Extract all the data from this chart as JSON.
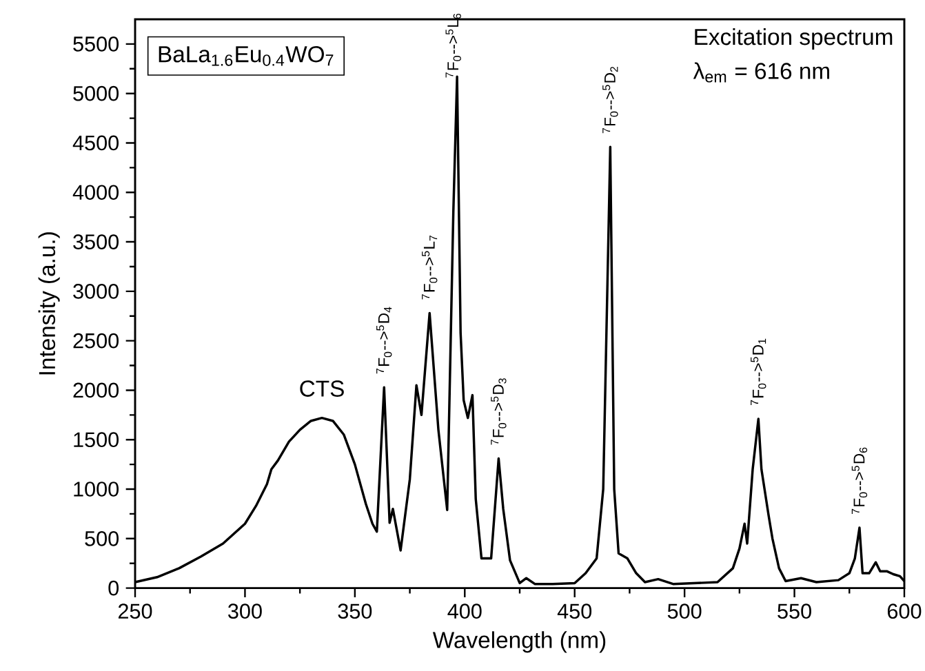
{
  "chart_data": {
    "type": "line",
    "xlabel": "Wavelength (nm)",
    "ylabel": "Intensity (a.u.)",
    "xlim": [
      250,
      600
    ],
    "ylim": [
      0,
      5750
    ],
    "xticks": [
      250,
      300,
      350,
      400,
      450,
      500,
      550,
      600
    ],
    "yticks": [
      0,
      500,
      1000,
      1500,
      2000,
      2500,
      3000,
      3500,
      4000,
      4500,
      5000,
      5500
    ],
    "color": "#000000",
    "x": [
      250,
      260,
      270,
      280,
      290,
      300,
      305,
      310,
      312,
      315,
      320,
      325,
      330,
      335,
      340,
      345,
      350,
      355,
      358,
      360,
      363.3,
      365.8,
      367.3,
      370.8,
      375,
      378,
      380.3,
      384,
      388,
      392,
      394.8,
      396.5,
      398.1,
      399.5,
      401.4,
      403.5,
      405,
      407.6,
      412,
      415.4,
      417.5,
      420.6,
      425,
      428,
      432,
      440,
      450,
      455,
      460,
      463,
      466.2,
      468,
      470,
      474,
      478,
      482,
      488,
      495,
      505,
      515,
      522,
      525,
      527.3,
      528.5,
      531,
      533.6,
      535,
      538.2,
      540,
      543,
      546,
      553,
      560,
      570,
      575,
      577.5,
      579.6,
      581,
      584,
      587,
      589,
      592,
      595,
      598,
      600
    ],
    "values": [
      60,
      110,
      200,
      320,
      450,
      650,
      830,
      1050,
      1200,
      1290,
      1480,
      1600,
      1690,
      1720,
      1690,
      1550,
      1250,
      850,
      650,
      570,
      2030,
      660,
      800,
      380,
      1100,
      2050,
      1750,
      2780,
      1600,
      790,
      3800,
      5170,
      2580,
      1900,
      1720,
      1950,
      900,
      300,
      300,
      1310,
      800,
      280,
      50,
      100,
      40,
      40,
      50,
      150,
      300,
      1000,
      4460,
      1000,
      350,
      300,
      150,
      60,
      90,
      40,
      50,
      60,
      200,
      400,
      650,
      450,
      1200,
      1710,
      1200,
      740,
      500,
      200,
      70,
      100,
      60,
      80,
      150,
      300,
      610,
      150,
      150,
      260,
      170,
      170,
      140,
      120,
      70
    ],
    "annotations": [
      {
        "text": "CTS",
        "x": 335,
        "y": 1720
      },
      {
        "text": "$^{7}$F$_{0}$-->$^{5}$D$_{4}$",
        "x": 363.3,
        "y": 2030
      },
      {
        "text": "$^{7}$F$_{0}$-->$^{5}$L$_{7}$",
        "x": 384,
        "y": 2780
      },
      {
        "text": "$^{7}$F$_{0}$-->$^{5}$L$_{6}$",
        "x": 394.8,
        "y": 5170
      },
      {
        "text": "$^{7}$F$_{0}$-->$^{5}$D$_{3}$",
        "x": 415.4,
        "y": 1310
      },
      {
        "text": "$^{7}$F$_{0}$-->$^{5}$D$_{2}$",
        "x": 466.2,
        "y": 4460
      },
      {
        "text": "$^{7}$F$_{0}$-->$^{5}$D$_{1}$",
        "x": 533.6,
        "y": 1710
      },
      {
        "text": "$^{7}$F$_{0}$-->$^{5}$D$_{6}$",
        "x": 579.6,
        "y": 610
      },
      "BaLa$_{1.6}$Eu$_{0.4}$WO$_{7}$",
      "Excitation spectrum",
      "λ$_{em}$ = 616 nm"
    ]
  }
}
